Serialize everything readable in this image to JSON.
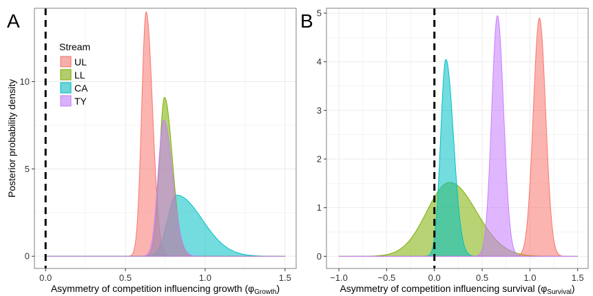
{
  "colors": {
    "UL": "#F8766D",
    "LL": "#7CAE00",
    "CA": "#00BFC4",
    "TY": "#C77CFF",
    "grid": "#EBEBEB",
    "panel_border": "#7F7F7F",
    "zero_line": "#000000"
  },
  "legend": {
    "title": "Stream",
    "items": [
      {
        "key": "UL",
        "label": "UL"
      },
      {
        "key": "LL",
        "label": "LL"
      },
      {
        "key": "CA",
        "label": "CA"
      },
      {
        "key": "TY",
        "label": "TY"
      }
    ]
  },
  "chart_data": [
    {
      "type": "area",
      "panel_letter": "A",
      "xlabel_main": "Asymmetry of competition influencing growth (",
      "xlabel_symbol": "φ",
      "xlabel_sub": "Growth",
      "xlabel_end": ")",
      "ylabel": "Posterior probability density",
      "xlim": [
        -0.07,
        1.57
      ],
      "ylim": [
        -0.7,
        14.2
      ],
      "xticks": [
        0,
        0.5,
        1,
        1.5
      ],
      "xtick_labels": [
        "0.0",
        "0.5",
        "1.0",
        "1.5"
      ],
      "yticks": [
        0,
        5,
        10
      ],
      "ytick_labels": [
        "0",
        "5",
        "10"
      ],
      "grid": true,
      "reference_line_x": 0,
      "series_range": [
        0,
        1.5
      ],
      "series": [
        {
          "key": "UL",
          "distribution": "skew-normal",
          "mode": 0.63,
          "peak": 14.0,
          "sd_left": 0.028,
          "sd_right": 0.04
        },
        {
          "key": "CA",
          "distribution": "skew-normal",
          "mode": 0.82,
          "peak": 3.5,
          "sd_left": 0.055,
          "sd_right": 0.16
        },
        {
          "key": "LL",
          "distribution": "skew-normal",
          "mode": 0.745,
          "peak": 9.1,
          "sd_left": 0.032,
          "sd_right": 0.05
        },
        {
          "key": "TY",
          "distribution": "skew-normal",
          "mode": 0.74,
          "peak": 7.8,
          "sd_left": 0.035,
          "sd_right": 0.055
        }
      ]
    },
    {
      "type": "area",
      "panel_letter": "B",
      "xlabel_main": "Asymmetry of competition influencing survival (",
      "xlabel_symbol": "φ",
      "xlabel_sub": "Survival",
      "xlabel_end": ")",
      "ylabel": "",
      "xlim": [
        -1.13,
        1.61
      ],
      "ylim": [
        -0.25,
        5.1
      ],
      "xticks": [
        -1,
        -0.5,
        0,
        0.5,
        1,
        1.5
      ],
      "xtick_labels": [
        "−1.0",
        "−0.5",
        "0.0",
        "0.5",
        "1.0",
        "1.5"
      ],
      "yticks": [
        0,
        1,
        2,
        3,
        4,
        5
      ],
      "ytick_labels": [
        "0",
        "1",
        "2",
        "3",
        "4",
        "5"
      ],
      "grid": true,
      "reference_line_x": 0,
      "series_range": [
        -1,
        1.5
      ],
      "series": [
        {
          "key": "LL",
          "distribution": "skew-normal",
          "mode": 0.16,
          "peak": 1.52,
          "sd_left": 0.24,
          "sd_right": 0.28
        },
        {
          "key": "CA",
          "distribution": "skew-normal",
          "mode": 0.12,
          "peak": 4.05,
          "sd_left": 0.055,
          "sd_right": 0.08
        },
        {
          "key": "UL",
          "distribution": "skew-normal",
          "mode": 1.1,
          "peak": 4.9,
          "sd_left": 0.065,
          "sd_right": 0.065
        },
        {
          "key": "TY",
          "distribution": "skew-normal",
          "mode": 0.66,
          "peak": 4.95,
          "sd_left": 0.06,
          "sd_right": 0.065
        }
      ]
    }
  ]
}
